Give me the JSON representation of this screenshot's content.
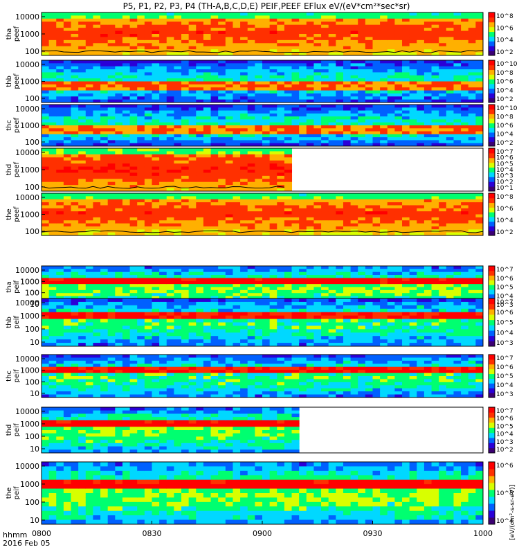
{
  "chart_data": {
    "type": "heatmap",
    "title": "P5, P1, P2, P3, P4 (TH-A,B,C,D,E) PEIF,PEEF EFlux eV/(eV*cm²*sec*sr)",
    "x_ticks": [
      "0800",
      "0830",
      "0900",
      "0930",
      "1000"
    ],
    "time_range": [
      "08:00",
      "10:00"
    ],
    "xlabel_line1": "hhmm",
    "xlabel_line2": "2016 Feb 05",
    "colorbar_unit": "[eV/(cm²-s-sr-eV)]",
    "colorscale": [
      "#3b0072",
      "#2a00d8",
      "#0060ff",
      "#00d8ff",
      "#00ff70",
      "#d8ff00",
      "#ffb000",
      "#ff3000",
      "#ff0000"
    ],
    "panels": [
      {
        "probe": "tha",
        "species": "peef",
        "yticks": [
          "10000",
          "1000",
          "100"
        ],
        "cbar_ticks": [
          "10^8",
          "10^6",
          "10^4",
          "10^2"
        ],
        "base_level": 0.85,
        "low_boundary": true,
        "data_end": 1.0
      },
      {
        "probe": "thb",
        "species": "peef",
        "yticks": [
          "10000",
          "1000",
          "100"
        ],
        "cbar_ticks": [
          "10^10",
          "10^8",
          "10^6",
          "10^4",
          "10^2"
        ],
        "base_level": 0.2,
        "low_boundary": false,
        "data_end": 1.0
      },
      {
        "probe": "thc",
        "species": "peef",
        "yticks": [
          "10000",
          "1000",
          "100"
        ],
        "cbar_ticks": [
          "10^10",
          "10^8",
          "10^6",
          "10^4",
          "10^2"
        ],
        "base_level": 0.2,
        "low_boundary": false,
        "data_end": 1.0
      },
      {
        "probe": "thd",
        "species": "peef",
        "yticks": [
          "10000",
          "1000",
          "100"
        ],
        "cbar_ticks": [
          "10^7",
          "10^6",
          "10^5",
          "10^4",
          "10^3",
          "10^2",
          "10^1"
        ],
        "base_level": 0.88,
        "low_boundary": true,
        "data_end": 0.56
      },
      {
        "probe": "the",
        "species": "peef",
        "yticks": [
          "10000",
          "1000",
          "100"
        ],
        "cbar_ticks": [
          "10^8",
          "10^6",
          "10^4",
          "10^2"
        ],
        "base_level": 0.85,
        "low_boundary": true,
        "data_end": 1.0
      },
      {
        "probe": "tha",
        "species": "peif",
        "yticks": [
          "10000",
          "1000",
          "100",
          "10"
        ],
        "cbar_ticks": [
          "10^7",
          "10^6",
          "10^5",
          "10^4",
          "10^3"
        ],
        "base_level": 0.3,
        "low_boundary": false,
        "data_end": 1.0
      },
      {
        "probe": "thb",
        "species": "peif",
        "yticks": [
          "10000",
          "1000",
          "100",
          "10"
        ],
        "cbar_ticks": [
          "10^7",
          "10^6",
          "10^5",
          "10^4",
          "10^3"
        ],
        "base_level": 0.25,
        "low_boundary": false,
        "data_end": 1.0
      },
      {
        "probe": "thc",
        "species": "peif",
        "yticks": [
          "10000",
          "1000",
          "100",
          "10"
        ],
        "cbar_ticks": [
          "10^7",
          "10^6",
          "10^5",
          "10^4",
          "10^3"
        ],
        "base_level": 0.25,
        "low_boundary": false,
        "data_end": 1.0
      },
      {
        "probe": "thd",
        "species": "peif",
        "yticks": [
          "10000",
          "1000",
          "100",
          "10"
        ],
        "cbar_ticks": [
          "10^7",
          "10^6",
          "10^5",
          "10^4",
          "10^3",
          "10^2"
        ],
        "base_level": 0.3,
        "low_boundary": false,
        "data_end": 0.57
      },
      {
        "probe": "the",
        "species": "peif",
        "yticks": [
          "10000",
          "1000",
          "100",
          "10"
        ],
        "cbar_ticks": [
          "10^6",
          "10^5",
          "10^4"
        ],
        "base_level": 0.3,
        "low_boundary": false,
        "data_end": 1.0
      }
    ]
  }
}
